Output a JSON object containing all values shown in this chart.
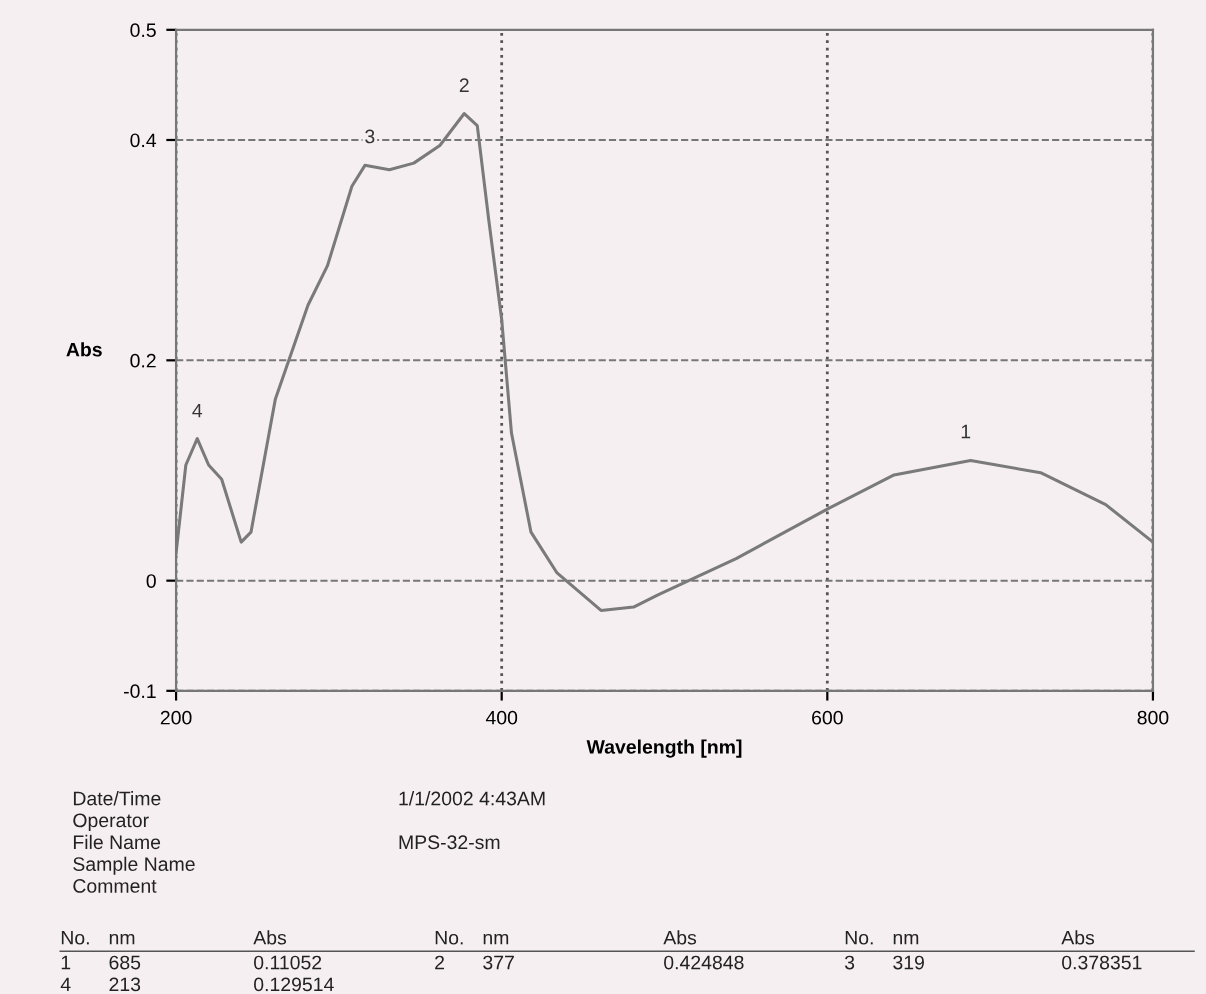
{
  "chart_data": {
    "type": "line",
    "xlabel": "Wavelength [nm]",
    "ylabel": "Abs",
    "x": [
      200,
      206,
      213,
      220,
      228,
      240,
      246,
      261,
      281,
      293,
      308,
      316,
      331,
      346,
      362,
      377,
      385,
      392,
      400,
      406,
      418,
      434,
      461,
      481,
      496,
      544,
      600,
      641,
      688,
      731,
      771,
      800
    ],
    "series": [
      {
        "color": "#7a7a7a",
        "values": [
          0.025,
          0.105,
          0.129,
          0.105,
          0.092,
          0.035,
          0.044,
          0.165,
          0.25,
          0.286,
          0.358,
          0.377,
          0.373,
          0.379,
          0.395,
          0.424,
          0.413,
          0.328,
          0.237,
          0.134,
          0.044,
          0.007,
          -0.027,
          -0.024,
          -0.013,
          0.02,
          0.065,
          0.096,
          0.109,
          0.098,
          0.069,
          0.035
        ]
      }
    ],
    "xlim": [
      200,
      800
    ],
    "xticks": [
      200,
      400,
      600,
      800
    ],
    "ylim": [
      -0.1,
      0.5
    ],
    "yticks": [
      -0.1,
      0,
      0.2,
      0.4,
      0.5
    ],
    "grid": true,
    "line_style": "solid",
    "marker": "none",
    "annotations": [
      {
        "text": "1",
        "x": 685,
        "y": 0.11052
      },
      {
        "text": "2",
        "x": 377,
        "y": 0.424848
      },
      {
        "text": "3",
        "x": 319,
        "y": 0.378351
      },
      {
        "text": "4",
        "x": 213,
        "y": 0.129514
      },
      "Date/Time",
      "Operator",
      "File Name",
      "Sample Name",
      "Comment",
      "1/1/2002 4:43AM",
      "MPS-32-sm",
      "No.",
      "nm",
      "Abs",
      "No.",
      "nm",
      "Abs",
      "No.",
      "nm",
      "Abs",
      "1",
      "685",
      "0.11052",
      "2",
      "377",
      "0.424848",
      "3",
      "319",
      "0.378351",
      "4",
      "213",
      "0.129514"
    ]
  }
}
